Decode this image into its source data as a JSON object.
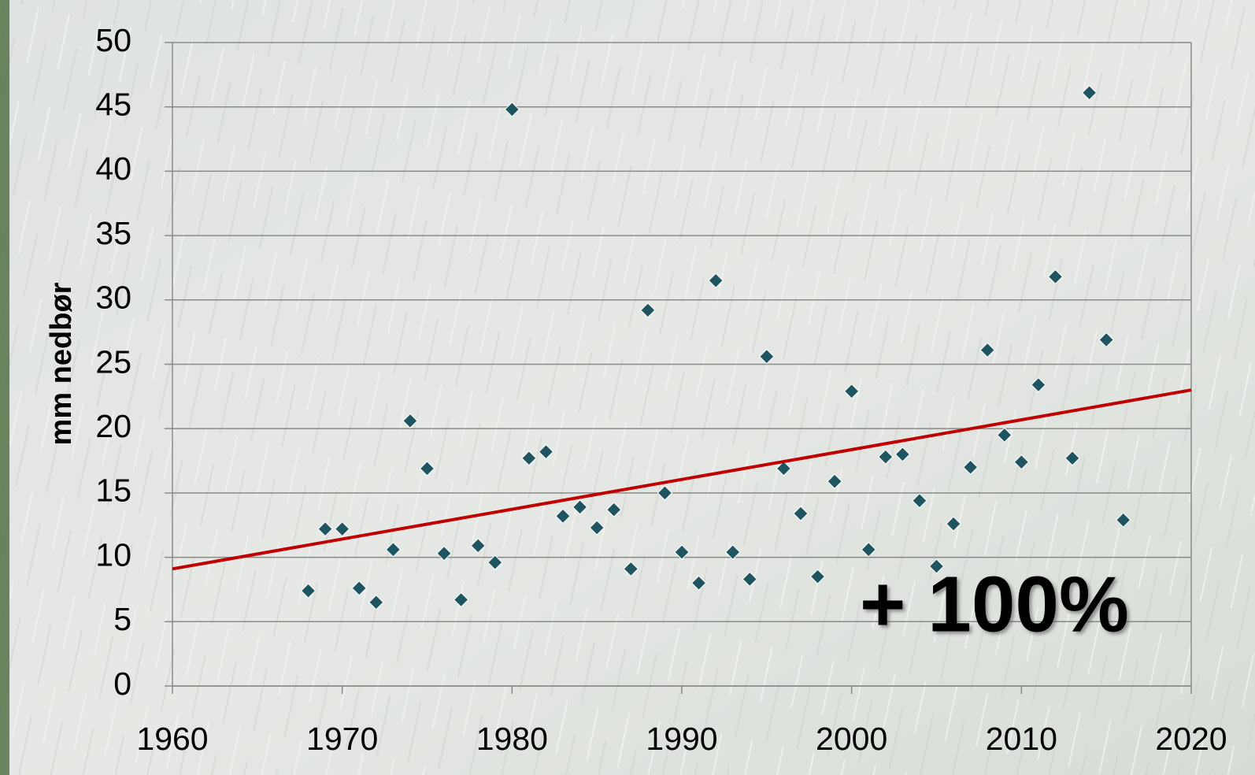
{
  "chart_data": {
    "type": "scatter",
    "y_label": "mm nedbør",
    "annotation": "+ 100%",
    "annotation_color": "#c00000",
    "xlim": [
      1960,
      2020
    ],
    "xticks": [
      1960,
      1970,
      1980,
      1990,
      2000,
      2010,
      2020
    ],
    "ylim": [
      0,
      50
    ],
    "yticks": [
      0,
      5,
      10,
      15,
      20,
      25,
      30,
      35,
      40,
      45,
      50
    ],
    "grid": true,
    "series": [
      {
        "mode": "markers",
        "marker": "diamond",
        "color": "#1f5560",
        "x": [
          1968,
          1969,
          1970,
          1971,
          1972,
          1973,
          1974,
          1975,
          1976,
          1977,
          1978,
          1979,
          1980,
          1981,
          1982,
          1983,
          1984,
          1985,
          1986,
          1987,
          1988,
          1989,
          1990,
          1991,
          1992,
          1993,
          1994,
          1995,
          1996,
          1997,
          1998,
          1999,
          2000,
          2001,
          2002,
          2003,
          2004,
          2005,
          2006,
          2007,
          2008,
          2009,
          2010,
          2011,
          2012,
          2013,
          2014,
          2015,
          2016
        ],
        "values": [
          7.4,
          12.2,
          12.2,
          7.6,
          6.5,
          10.6,
          20.6,
          16.9,
          10.3,
          6.7,
          10.9,
          9.6,
          44.8,
          17.7,
          18.2,
          13.2,
          13.9,
          12.3,
          13.7,
          9.1,
          29.2,
          15.0,
          10.4,
          8.0,
          31.5,
          10.4,
          8.3,
          25.6,
          16.9,
          13.4,
          8.5,
          15.9,
          22.9,
          10.6,
          17.8,
          18.0,
          14.4,
          9.3,
          12.6,
          17.0,
          26.1,
          19.5,
          17.4,
          23.4,
          31.8,
          17.7,
          46.1,
          26.9,
          12.9
        ]
      },
      {
        "mode": "line",
        "color": "#c00000",
        "x": [
          1960,
          2020
        ],
        "values": [
          9.1,
          23.0
        ]
      }
    ]
  }
}
